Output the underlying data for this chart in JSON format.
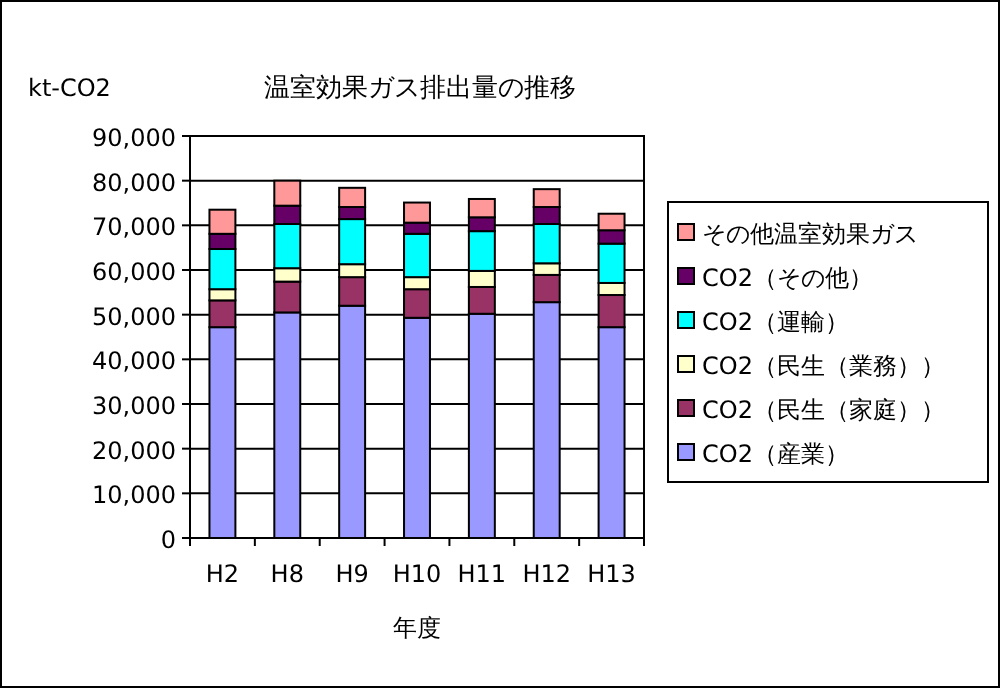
{
  "chart_data": {
    "type": "bar",
    "stacked": true,
    "title": "温室効果ガス排出量の推移",
    "ylabel": "kt-CO2",
    "xlabel": "年度",
    "categories": [
      "H2",
      "H8",
      "H9",
      "H10",
      "H11",
      "H12",
      "H13"
    ],
    "series": [
      {
        "name": "CO2（産業）",
        "color": "#9999ff",
        "values": [
          47200,
          50500,
          52000,
          49300,
          50200,
          52800,
          47200
        ]
      },
      {
        "name": "CO2（民生（家庭））",
        "color": "#993366",
        "values": [
          6000,
          6900,
          6400,
          6400,
          6000,
          6100,
          7200
        ]
      },
      {
        "name": "CO2（民生（業務））",
        "color": "#ffffcc",
        "values": [
          2500,
          3000,
          2900,
          2700,
          3600,
          2600,
          2700
        ]
      },
      {
        "name": "CO2（運輸）",
        "color": "#00ffff",
        "values": [
          9000,
          9900,
          10100,
          9700,
          8900,
          8800,
          8800
        ]
      },
      {
        "name": "CO2（その他）",
        "color": "#660066",
        "values": [
          3400,
          4100,
          2700,
          2500,
          3100,
          3800,
          3000
        ]
      },
      {
        "name": "その他温室効果ガス",
        "color": "#ff9999",
        "values": [
          5400,
          5600,
          4300,
          4500,
          4100,
          4000,
          3700
        ]
      }
    ],
    "ylim": [
      0,
      90000
    ],
    "yticks": [
      0,
      {
        "value": 10000,
        "label": "10,000"
      },
      {
        "value": 20000,
        "label": "20,000"
      },
      {
        "value": 30000,
        "label": "30,000"
      },
      {
        "value": 40000,
        "label": "40,000"
      },
      {
        "value": 50000,
        "label": "50,000"
      },
      {
        "value": 60000,
        "label": "60,000"
      },
      {
        "value": 70000,
        "label": "70,000"
      },
      {
        "value": 80000,
        "label": "80,000"
      },
      {
        "value": 90000,
        "label": "90,000"
      }
    ],
    "grid": "y",
    "legend": "right"
  }
}
